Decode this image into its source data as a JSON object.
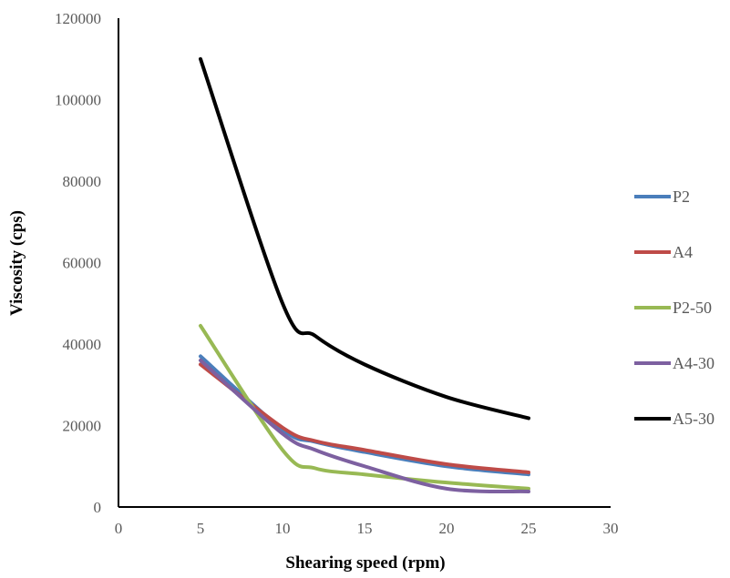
{
  "chart_data": {
    "type": "line",
    "xlabel": "Shearing speed (rpm)",
    "ylabel": "Viscosity (cps)",
    "xlim": [
      0,
      30
    ],
    "ylim": [
      0,
      120000
    ],
    "xticks": [
      0,
      5,
      10,
      15,
      20,
      25,
      30
    ],
    "yticks": [
      0,
      20000,
      40000,
      60000,
      80000,
      100000,
      120000
    ],
    "grid": false,
    "legend_position": "right",
    "x": [
      5,
      10,
      12,
      15,
      20,
      25
    ],
    "series": [
      {
        "name": "P2",
        "color": "#4a7ebb",
        "values": [
          37000,
          19000,
          16000,
          13500,
          10000,
          8000
        ]
      },
      {
        "name": "A4",
        "color": "#be4b48",
        "values": [
          35000,
          19500,
          16200,
          14000,
          10500,
          8500
        ]
      },
      {
        "name": "P2-50",
        "color": "#98b954",
        "values": [
          44500,
          14000,
          9500,
          8000,
          6000,
          4500
        ]
      },
      {
        "name": "A4-30",
        "color": "#7d60a0",
        "values": [
          36000,
          18000,
          14000,
          10000,
          4500,
          3800
        ]
      },
      {
        "name": "A5-30",
        "color": "#000000",
        "values": [
          110000,
          50000,
          42000,
          35000,
          27000,
          21800
        ]
      }
    ]
  }
}
